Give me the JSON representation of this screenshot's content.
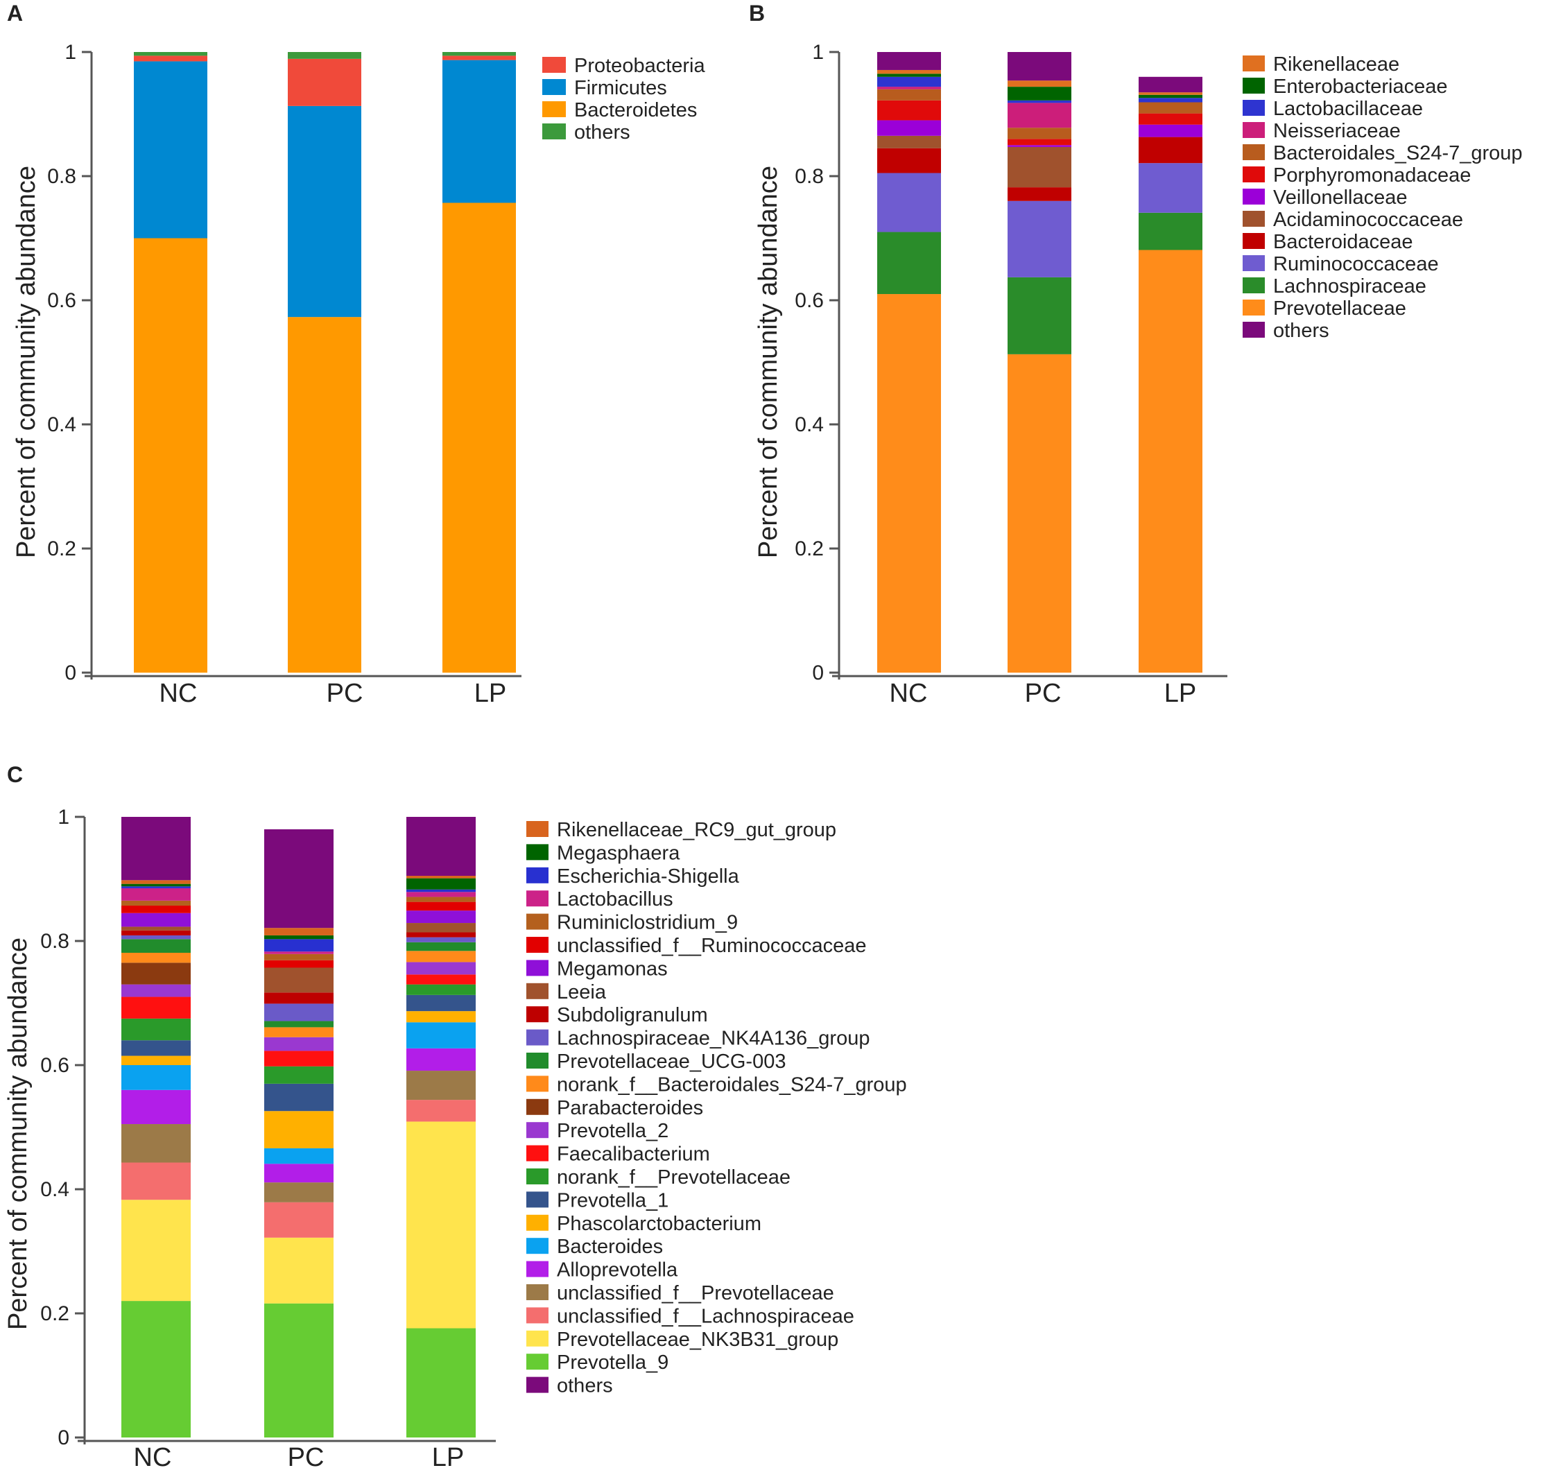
{
  "chart_data": [
    {
      "panel": "A",
      "type": "bar",
      "stacked": true,
      "ylabel": "Percent of community abundance",
      "ylim": [
        0,
        1
      ],
      "yticks": [
        "0",
        "0.2",
        "0.4",
        "0.6",
        "0.8",
        "1"
      ],
      "categories": [
        "NC",
        "PC",
        "LP"
      ],
      "series": [
        {
          "name": "Bacteroidetes",
          "color": "#FF9900",
          "values": [
            0.7,
            0.573,
            0.757
          ]
        },
        {
          "name": "Firmicutes",
          "color": "#0088D1",
          "values": [
            0.285,
            0.34,
            0.23
          ]
        },
        {
          "name": "Proteobacteria",
          "color": "#F04A3A",
          "values": [
            0.009,
            0.076,
            0.007
          ]
        },
        {
          "name": "others",
          "color": "#3C9A3C",
          "values": [
            0.006,
            0.011,
            0.006
          ]
        }
      ],
      "legend": [
        "Proteobacteria",
        "Firmicutes",
        "Bacteroidetes",
        "others"
      ]
    },
    {
      "panel": "B",
      "type": "bar",
      "stacked": true,
      "ylabel": "Percent of community abundance",
      "ylim": [
        0,
        1
      ],
      "yticks": [
        "0",
        "0.2",
        "0.4",
        "0.6",
        "0.8",
        "1"
      ],
      "categories": [
        "NC",
        "PC",
        "LP"
      ],
      "series": [
        {
          "name": "Prevotellaceae",
          "color": "#FF8C1A",
          "values": [
            0.61,
            0.513,
            0.681
          ]
        },
        {
          "name": "Lachnospiraceae",
          "color": "#2A8C2A",
          "values": [
            0.1,
            0.124,
            0.06
          ]
        },
        {
          "name": "Ruminococcaceae",
          "color": "#6F5CD0",
          "values": [
            0.095,
            0.123,
            0.08
          ]
        },
        {
          "name": "Bacteroidaceae",
          "color": "#C00000",
          "values": [
            0.04,
            0.022,
            0.042
          ]
        },
        {
          "name": "Acidaminococcaceae",
          "color": "#A0522D",
          "values": [
            0.02,
            0.065,
            0.0
          ]
        },
        {
          "name": "Veillonellaceae",
          "color": "#9B00D8",
          "values": [
            0.025,
            0.003,
            0.02
          ]
        },
        {
          "name": "Porphyromonadaceae",
          "color": "#E00A0A",
          "values": [
            0.032,
            0.01,
            0.018
          ]
        },
        {
          "name": "Bacteroidales_S24-7_group",
          "color": "#B85C1E",
          "values": [
            0.018,
            0.018,
            0.018
          ]
        },
        {
          "name": "Neisseriaceae",
          "color": "#CC1E7A",
          "values": [
            0.004,
            0.04,
            0.0
          ]
        },
        {
          "name": "Lactobacillaceae",
          "color": "#2E34D0",
          "values": [
            0.016,
            0.004,
            0.007
          ]
        },
        {
          "name": "Enterobacteriaceae",
          "color": "#006400",
          "values": [
            0.005,
            0.022,
            0.005
          ]
        },
        {
          "name": "Rikenellaceae",
          "color": "#E07020",
          "values": [
            0.006,
            0.01,
            0.004
          ]
        },
        {
          "name": "others",
          "color": "#7B0A7B",
          "values": [
            0.029,
            0.046,
            0.025
          ]
        }
      ],
      "legend": [
        "Rikenellaceae",
        "Enterobacteriaceae",
        "Lactobacillaceae",
        "Neisseriaceae",
        "Bacteroidales_S24-7_group",
        "Porphyromonadaceae",
        "Veillonellaceae",
        "Acidaminococcaceae",
        "Bacteroidaceae",
        "Ruminococcaceae",
        "Lachnospiraceae",
        "Prevotellaceae",
        "others"
      ]
    },
    {
      "panel": "C",
      "type": "bar",
      "stacked": true,
      "ylabel": "Percent of community abundance",
      "ylim": [
        0,
        1
      ],
      "yticks": [
        "0",
        "0.2",
        "0.4",
        "0.6",
        "0.8",
        "1"
      ],
      "categories": [
        "NC",
        "PC",
        "LP"
      ],
      "series": [
        {
          "name": "Prevotella_9",
          "color": "#66CC33",
          "values": [
            0.22,
            0.216,
            0.176
          ]
        },
        {
          "name": "Prevotellaceae_NK3B31_group",
          "color": "#FFE44D",
          "values": [
            0.163,
            0.106,
            0.333
          ]
        },
        {
          "name": "unclassified_f__Lachnospiraceae",
          "color": "#F46E6E",
          "values": [
            0.06,
            0.057,
            0.035
          ]
        },
        {
          "name": "unclassified_f__Prevotellaceae",
          "color": "#9C7A48",
          "values": [
            0.062,
            0.032,
            0.047
          ]
        },
        {
          "name": "Alloprevotella",
          "color": "#B21EE8",
          "values": [
            0.055,
            0.03,
            0.036
          ]
        },
        {
          "name": "Bacteroides",
          "color": "#0AA2F0",
          "values": [
            0.04,
            0.025,
            0.042
          ]
        },
        {
          "name": "Phascolarctobacterium",
          "color": "#FFB000",
          "values": [
            0.015,
            0.06,
            0.018
          ]
        },
        {
          "name": "Prevotella_1",
          "color": "#34548C",
          "values": [
            0.025,
            0.044,
            0.026
          ]
        },
        {
          "name": "norank_f__Prevotellaceae",
          "color": "#2A9A2A",
          "values": [
            0.035,
            0.028,
            0.017
          ]
        },
        {
          "name": "Faecalibacterium",
          "color": "#FF1010",
          "values": [
            0.035,
            0.025,
            0.016
          ]
        },
        {
          "name": "Prevotella_2",
          "color": "#9A38D0",
          "values": [
            0.02,
            0.022,
            0.02
          ]
        },
        {
          "name": "Parabacteroides",
          "color": "#8B3A10",
          "values": [
            0.035,
            0.0,
            0.0
          ]
        },
        {
          "name": "norank_f__Bacteroidales_S24-7_group",
          "color": "#FF8A1A",
          "values": [
            0.016,
            0.016,
            0.018
          ]
        },
        {
          "name": "Prevotellaceae_UCG-003",
          "color": "#218C2C",
          "values": [
            0.022,
            0.01,
            0.014
          ]
        },
        {
          "name": "Lachnospiraceae_NK4A136_group",
          "color": "#6A5AC8",
          "values": [
            0.006,
            0.028,
            0.008
          ]
        },
        {
          "name": "Subdoligranulum",
          "color": "#BE0000",
          "values": [
            0.008,
            0.018,
            0.008
          ]
        },
        {
          "name": "Leeia",
          "color": "#A0522D",
          "values": [
            0.006,
            0.04,
            0.015
          ]
        },
        {
          "name": "Megamonas",
          "color": "#8F10D8",
          "values": [
            0.022,
            0.0,
            0.02
          ]
        },
        {
          "name": "unclassified_f__Ruminococcaceae",
          "color": "#E20000",
          "values": [
            0.012,
            0.012,
            0.014
          ]
        },
        {
          "name": "Ruminiclostridium_9",
          "color": "#B4601E",
          "values": [
            0.008,
            0.01,
            0.008
          ]
        },
        {
          "name": "Lactobacillus",
          "color": "#CC2288",
          "values": [
            0.02,
            0.004,
            0.008
          ]
        },
        {
          "name": "Escherichia-Shigella",
          "color": "#2830D0",
          "values": [
            0.003,
            0.02,
            0.004
          ]
        },
        {
          "name": "Megasphaera",
          "color": "#006400",
          "values": [
            0.004,
            0.006,
            0.018
          ]
        },
        {
          "name": "Rikenellaceae_RC9_gut_group",
          "color": "#D8641E",
          "values": [
            0.006,
            0.012,
            0.004
          ]
        },
        {
          "name": "others",
          "color": "#7B0A7B",
          "values": [
            0.102,
            0.159,
            0.095
          ]
        }
      ],
      "legend": [
        "Rikenellaceae_RC9_gut_group",
        "Megasphaera",
        "Escherichia-Shigella",
        "Lactobacillus",
        "Ruminiclostridium_9",
        "unclassified_f__Ruminococcaceae",
        "Megamonas",
        "Leeia",
        "Subdoligranulum",
        "Lachnospiraceae_NK4A136_group",
        "Prevotellaceae_UCG-003",
        "norank_f__Bacteroidales_S24-7_group",
        "Parabacteroides",
        "Prevotella_2",
        "Faecalibacterium",
        "norank_f__Prevotellaceae",
        "Prevotella_1",
        "Phascolarctobacterium",
        "Bacteroides",
        "Alloprevotella",
        "unclassified_f__Prevotellaceae",
        "unclassified_f__Lachnospiraceae",
        "Prevotellaceae_NK3B31_group",
        "Prevotella_9",
        "others"
      ]
    }
  ]
}
